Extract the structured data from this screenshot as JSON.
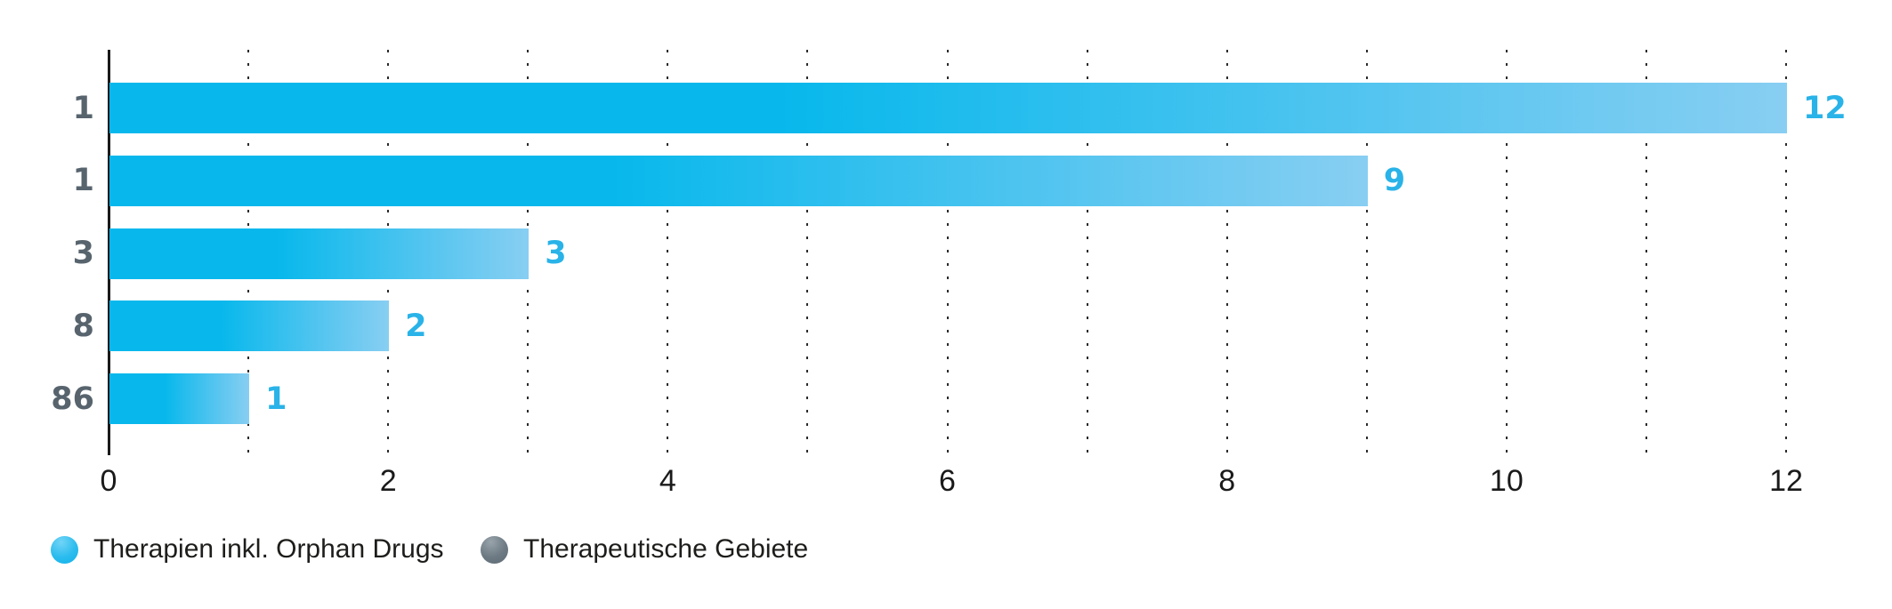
{
  "chart_data": {
    "type": "bar",
    "orientation": "horizontal",
    "title": "",
    "categories": [
      "1",
      "1",
      "3",
      "8",
      "86"
    ],
    "values": [
      12,
      9,
      3,
      2,
      1
    ],
    "value_labels": [
      "12",
      "9",
      "3",
      "2",
      "1"
    ],
    "series": [
      {
        "name": "Therapien inkl. Orphan Drugs",
        "values": [
          12,
          9,
          3,
          2,
          1
        ]
      }
    ],
    "x_ticks": [
      "0",
      "2",
      "4",
      "6",
      "8",
      "10",
      "12"
    ],
    "x_tick_values": [
      0,
      2,
      4,
      6,
      8,
      10,
      12
    ],
    "xlim": [
      0,
      12
    ],
    "xlabel": "",
    "ylabel": "",
    "grid": "dotted vertical gridlines every 1 unit",
    "legend_position": "bottom-left",
    "legend": [
      {
        "label": "Therapien inkl. Orphan Drugs",
        "swatch": "cyan-circle",
        "color": "#12b5ec"
      },
      {
        "label": "Therapeutische Gebiete",
        "swatch": "gray-circle",
        "color": "#66737d"
      }
    ],
    "colors": {
      "bar_gradient_start": "#08b8ec",
      "bar_gradient_end": "#88cef2",
      "value_label": "#29b3e8",
      "category_label": "#57646e",
      "axis_line": "#1a1a1a",
      "gridline": "#2b2b2b",
      "tick_label": "#1a1a1a",
      "legend_text": "#1d1d1b",
      "background": "#ffffff"
    }
  }
}
